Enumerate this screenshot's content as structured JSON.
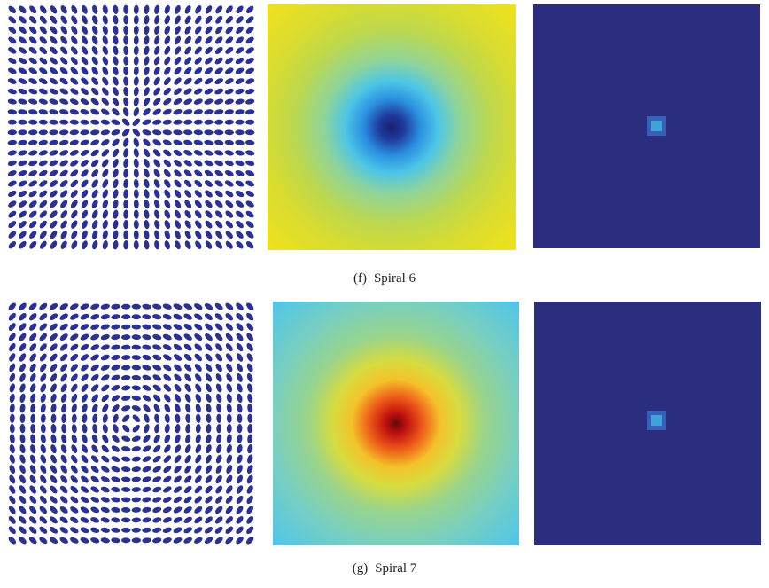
{
  "figures": [
    {
      "label": "(f)",
      "caption": "Spiral 6"
    },
    {
      "label": "(g)",
      "caption": "Spiral 7"
    }
  ]
}
